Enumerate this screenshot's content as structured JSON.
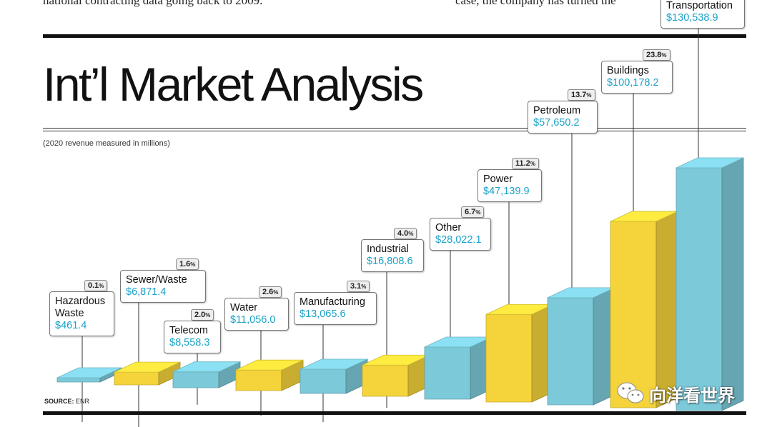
{
  "article": {
    "left_text": "national contracting data going back to 2009.",
    "right_text": "case, the company has turned the"
  },
  "chart_data": {
    "type": "bar",
    "title": "Int’l Market Analysis",
    "subtitle": "(2020 revenue measured in millions)",
    "source_label": "SOURCE:",
    "source_value": "ENR",
    "categories": [
      "Hazardous Waste",
      "Sewer/Waste",
      "Telecom",
      "Water",
      "Manufacturing",
      "Industrial",
      "Other",
      "Power",
      "Petroleum",
      "Buildings",
      "Transportation"
    ],
    "values": [
      461.4,
      6871.4,
      8558.3,
      11056.0,
      13065.6,
      16808.6,
      28022.1,
      47139.9,
      57650.2,
      100178.2,
      130538.9
    ],
    "value_labels": [
      "$461.4",
      "$6,871.4",
      "$8,558.3",
      "$11,056.0",
      "$13,065.6",
      "$16,808.6",
      "$28,022.1",
      "$47,139.9",
      "$57,650.2",
      "$100,178.2",
      "$130,538.9"
    ],
    "percent_labels": [
      "0.1",
      "1.6",
      "2.0",
      "2.6",
      "3.1",
      "4.0",
      "6.7",
      "11.2",
      "13.7",
      "23.8",
      ""
    ],
    "percent_unit": "%",
    "bar_colors": [
      "#7cc9d9",
      "#f5d33a",
      "#7cc9d9",
      "#f5d33a",
      "#7cc9d9",
      "#f5d33a",
      "#7cc9d9",
      "#f5d33a",
      "#7cc9d9",
      "#f5d33a",
      "#7cc9d9"
    ],
    "colors": {
      "blue": "#7cc9d9",
      "yellow": "#f5d33a",
      "value_text": "#1aa2c8"
    }
  },
  "watermark": {
    "text": "向洋看世界",
    "icon": "wechat-icon"
  }
}
